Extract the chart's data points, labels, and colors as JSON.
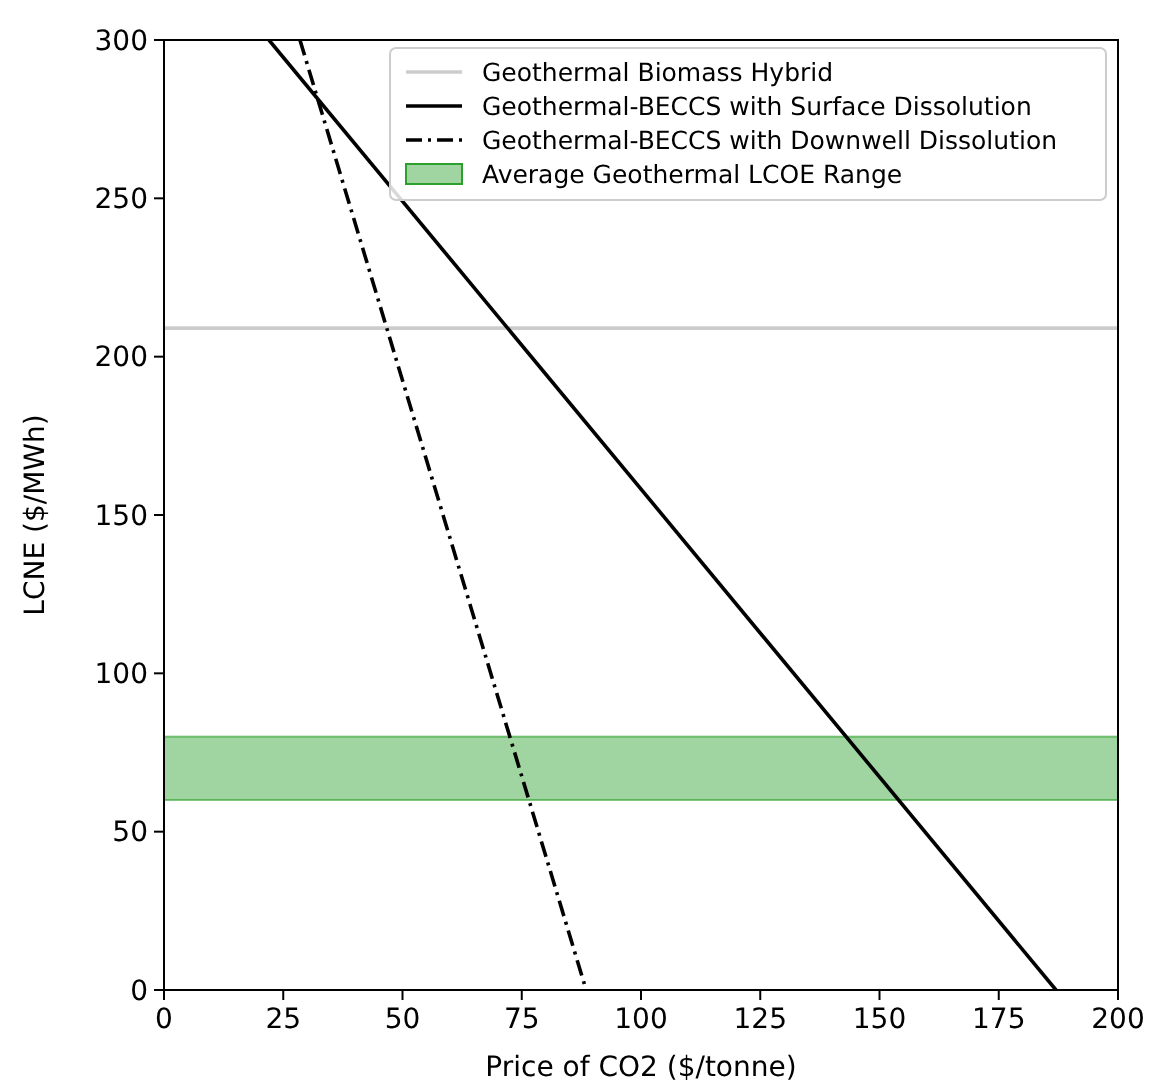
{
  "chart_data": {
    "type": "line",
    "xlabel": "Price of CO2 ($/tonne)",
    "ylabel": "LCNE ($/MWh)",
    "xlim": [
      0,
      200
    ],
    "ylim": [
      0,
      300
    ],
    "xticks": [
      0,
      25,
      50,
      75,
      100,
      125,
      150,
      175,
      200
    ],
    "yticks": [
      0,
      50,
      100,
      150,
      200,
      250,
      300
    ],
    "series": [
      {
        "name": "Geothermal Biomass Hybrid",
        "color": "#cccccc",
        "x": [
          0,
          200
        ],
        "values": [
          209,
          209
        ],
        "line_style": "solid"
      },
      {
        "name": "Geothermal-BECCS with Surface Dissolution",
        "color": "#000000",
        "x": [
          22,
          187
        ],
        "values": [
          300,
          0
        ],
        "line_style": "solid"
      },
      {
        "name": "Geothermal-BECCS with Downwell Dissolution",
        "color": "#000000",
        "x": [
          28.5,
          88.5
        ],
        "values": [
          300,
          0
        ],
        "line_style": "dashdot"
      }
    ],
    "bands": [
      {
        "axis": "y",
        "from": 60,
        "to": 80,
        "label": "Average Geothermal LCOE Range",
        "color": "#2ca02c"
      }
    ],
    "legend": "top right",
    "grid": false,
    "marker": "none"
  }
}
